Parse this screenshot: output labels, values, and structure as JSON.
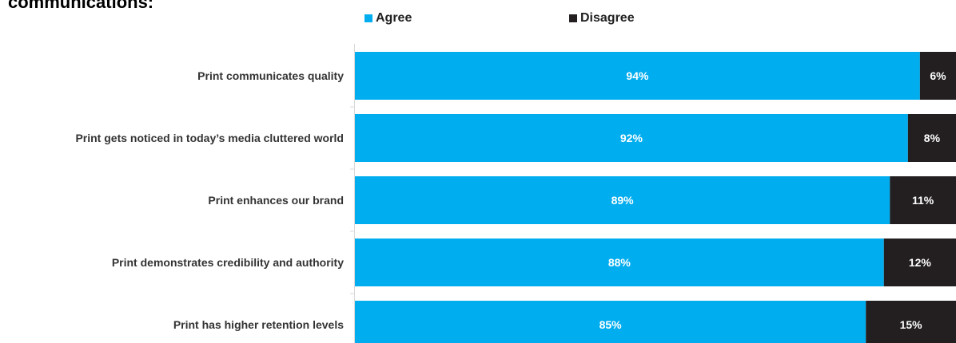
{
  "title": "communications:",
  "chart_data": {
    "type": "bar",
    "orientation": "horizontal",
    "stacked": true,
    "categories": [
      "Print communicates quality",
      "Print gets noticed in today’s media cluttered world",
      "Print enhances our brand",
      "Print demonstrates credibility and authority",
      "Print has higher retention levels"
    ],
    "series": [
      {
        "name": "Agree",
        "values": [
          94,
          92,
          89,
          88,
          85
        ],
        "labels": [
          "94%",
          "92%",
          "89%",
          "88%",
          "85%"
        ],
        "color": "#00adef"
      },
      {
        "name": "Disagree",
        "values": [
          6,
          8,
          11,
          12,
          15
        ],
        "labels": [
          "6%",
          "8%",
          "11%",
          "12%",
          "15%"
        ],
        "color": "#231f20"
      }
    ],
    "xlim": [
      0,
      100
    ],
    "legend_position": "top",
    "grid": false
  }
}
